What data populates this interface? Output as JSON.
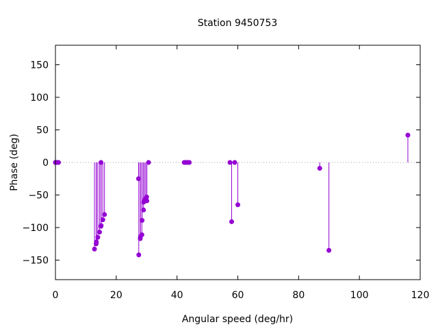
{
  "chart_data": {
    "type": "scatter",
    "style": "impulses",
    "title": "Station 9450753",
    "xlabel": "Angular speed (deg/hr)",
    "ylabel": "Phase (deg)",
    "xlim": [
      0,
      120
    ],
    "ylim": [
      -180,
      180
    ],
    "xticks": [
      0,
      20,
      40,
      60,
      80,
      100,
      120
    ],
    "yticks": [
      -150,
      -100,
      -50,
      0,
      50,
      100,
      150
    ],
    "grid": false,
    "zero_line": "dotted",
    "marker_color": "#9400d3",
    "points": [
      {
        "x": 0.0,
        "y": 0
      },
      {
        "x": 0.04,
        "y": 0
      },
      {
        "x": 0.08,
        "y": 0
      },
      {
        "x": 0.5,
        "y": 0
      },
      {
        "x": 1.0,
        "y": 0
      },
      {
        "x": 12.85,
        "y": -133
      },
      {
        "x": 13.4,
        "y": -125
      },
      {
        "x": 13.47,
        "y": -122
      },
      {
        "x": 13.94,
        "y": -115
      },
      {
        "x": 14.5,
        "y": -107
      },
      {
        "x": 14.96,
        "y": -98
      },
      {
        "x": 15.0,
        "y": 0
      },
      {
        "x": 15.04,
        "y": -97
      },
      {
        "x": 15.59,
        "y": -88
      },
      {
        "x": 16.14,
        "y": -80
      },
      {
        "x": 27.34,
        "y": -25
      },
      {
        "x": 27.42,
        "y": -142
      },
      {
        "x": 27.9,
        "y": -117
      },
      {
        "x": 27.97,
        "y": -114
      },
      {
        "x": 28.44,
        "y": -111
      },
      {
        "x": 28.51,
        "y": -89
      },
      {
        "x": 28.98,
        "y": -73
      },
      {
        "x": 29.0,
        "y": -61
      },
      {
        "x": 29.46,
        "y": -57
      },
      {
        "x": 29.53,
        "y": -56
      },
      {
        "x": 30.0,
        "y": -53
      },
      {
        "x": 30.08,
        "y": -59
      },
      {
        "x": 30.63,
        "y": 0
      },
      {
        "x": 42.38,
        "y": 0
      },
      {
        "x": 42.93,
        "y": 0
      },
      {
        "x": 43.48,
        "y": 0
      },
      {
        "x": 44.03,
        "y": 0
      },
      {
        "x": 57.42,
        "y": 0
      },
      {
        "x": 57.97,
        "y": -91
      },
      {
        "x": 58.98,
        "y": 0
      },
      {
        "x": 60.0,
        "y": -65
      },
      {
        "x": 86.95,
        "y": -9
      },
      {
        "x": 89.97,
        "y": -135
      },
      {
        "x": 115.94,
        "y": 42
      }
    ]
  }
}
